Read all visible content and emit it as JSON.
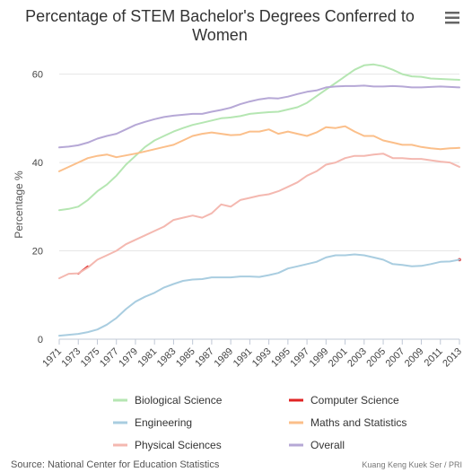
{
  "header": {
    "title_line1": "Percentage of STEM Bachelor's Degrees Conferred to",
    "title_line2": "Women",
    "menu_icon": "hamburger-menu-icon"
  },
  "footer": {
    "source": "Source: National Center for Education Statistics",
    "credit": "Kuang Keng Kuek Ser / PRI"
  },
  "chart_data": {
    "type": "line",
    "title": "Percentage of STEM Bachelor's Degrees Conferred to Women",
    "ylabel": "Percentage %",
    "xlabel": "",
    "x": [
      1971,
      1972,
      1973,
      1974,
      1975,
      1976,
      1977,
      1978,
      1979,
      1980,
      1981,
      1982,
      1983,
      1984,
      1985,
      1986,
      1987,
      1988,
      1989,
      1990,
      1991,
      1992,
      1993,
      1994,
      1995,
      1996,
      1997,
      1998,
      1999,
      2000,
      2001,
      2002,
      2003,
      2004,
      2005,
      2006,
      2007,
      2008,
      2009,
      2010,
      2011,
      2012,
      2013
    ],
    "x_tick_labels": [
      "1971",
      "1973",
      "1975",
      "1977",
      "1979",
      "1981",
      "1983",
      "1985",
      "1987",
      "1989",
      "1991",
      "1993",
      "1995",
      "1997",
      "1999",
      "2001",
      "2003",
      "2005",
      "2007",
      "2009",
      "2011",
      "2013"
    ],
    "y_ticks": [
      "0",
      "20",
      "40",
      "60"
    ],
    "ylim": [
      0,
      65
    ],
    "grid": "horizontal",
    "legend_position": "bottom",
    "series": [
      {
        "name": "Biological Science",
        "color": "#b5e6b2",
        "values": [
          29.2,
          29.5,
          30.0,
          31.5,
          33.5,
          35.0,
          37.0,
          39.5,
          41.5,
          43.5,
          45.0,
          46.0,
          47.0,
          47.8,
          48.5,
          49.0,
          49.5,
          50.0,
          50.2,
          50.5,
          51.0,
          51.2,
          51.4,
          51.5,
          52.0,
          52.5,
          53.5,
          55.0,
          56.5,
          58.0,
          59.5,
          61.0,
          62.0,
          62.2,
          61.8,
          61.0,
          60.0,
          59.5,
          59.4,
          59.0,
          58.9,
          58.8,
          58.7
        ]
      },
      {
        "name": "Computer Science",
        "color": "#e02424",
        "values": [
          null,
          null,
          14.8,
          16.5,
          null,
          null,
          null,
          null,
          null,
          null,
          null,
          null,
          null,
          null,
          null,
          null,
          null,
          null,
          null,
          null,
          null,
          null,
          null,
          null,
          null,
          null,
          null,
          null,
          null,
          null,
          null,
          null,
          null,
          null,
          null,
          null,
          null,
          null,
          null,
          null,
          null,
          null,
          18.0
        ],
        "note": "only small visible segments"
      },
      {
        "name": "Engineering",
        "color": "#a9cde0",
        "values": [
          0.8,
          1.0,
          1.2,
          1.6,
          2.2,
          3.3,
          4.8,
          6.8,
          8.5,
          9.6,
          10.5,
          11.7,
          12.5,
          13.2,
          13.5,
          13.6,
          14.0,
          14.0,
          14.0,
          14.2,
          14.2,
          14.1,
          14.5,
          15.0,
          16.0,
          16.5,
          17.0,
          17.5,
          18.5,
          19.0,
          19.0,
          19.2,
          19.0,
          18.5,
          18.0,
          17.0,
          16.8,
          16.5,
          16.6,
          17.0,
          17.5,
          17.6,
          18.0
        ]
      },
      {
        "name": "Maths and Statistics",
        "color": "#fbbf8a",
        "values": [
          38.0,
          39.0,
          40.0,
          41.0,
          41.5,
          41.8,
          41.2,
          41.6,
          42.0,
          42.5,
          43.0,
          43.5,
          44.0,
          45.0,
          46.0,
          46.5,
          46.8,
          46.5,
          46.2,
          46.3,
          47.0,
          47.0,
          47.5,
          46.5,
          47.0,
          46.5,
          46.0,
          46.8,
          48.0,
          47.8,
          48.2,
          47.0,
          46.0,
          46.0,
          45.0,
          44.5,
          44.0,
          44.0,
          43.5,
          43.2,
          43.0,
          43.2,
          43.3
        ]
      },
      {
        "name": "Physical Sciences",
        "color": "#f4b8b0",
        "values": [
          13.8,
          14.8,
          14.9,
          16.2,
          18.0,
          19.0,
          20.0,
          21.5,
          22.5,
          23.5,
          24.5,
          25.5,
          27.0,
          27.5,
          28.0,
          27.5,
          28.5,
          30.5,
          30.0,
          31.5,
          32.0,
          32.5,
          32.8,
          33.5,
          34.5,
          35.5,
          37.0,
          38.0,
          39.5,
          40.0,
          41.0,
          41.5,
          41.5,
          41.8,
          42.0,
          41.0,
          41.0,
          40.8,
          40.8,
          40.5,
          40.2,
          40.0,
          39.0
        ]
      },
      {
        "name": "Overall",
        "color": "#b6a8d6",
        "values": [
          43.4,
          43.6,
          43.9,
          44.5,
          45.4,
          46.0,
          46.5,
          47.5,
          48.5,
          49.2,
          49.8,
          50.3,
          50.6,
          50.8,
          51.0,
          51.0,
          51.5,
          51.9,
          52.4,
          53.2,
          53.8,
          54.3,
          54.6,
          54.5,
          54.9,
          55.5,
          56.0,
          56.3,
          57.0,
          57.2,
          57.3,
          57.3,
          57.4,
          57.2,
          57.2,
          57.3,
          57.2,
          57.0,
          57.0,
          57.1,
          57.2,
          57.1,
          57.0
        ]
      }
    ]
  }
}
